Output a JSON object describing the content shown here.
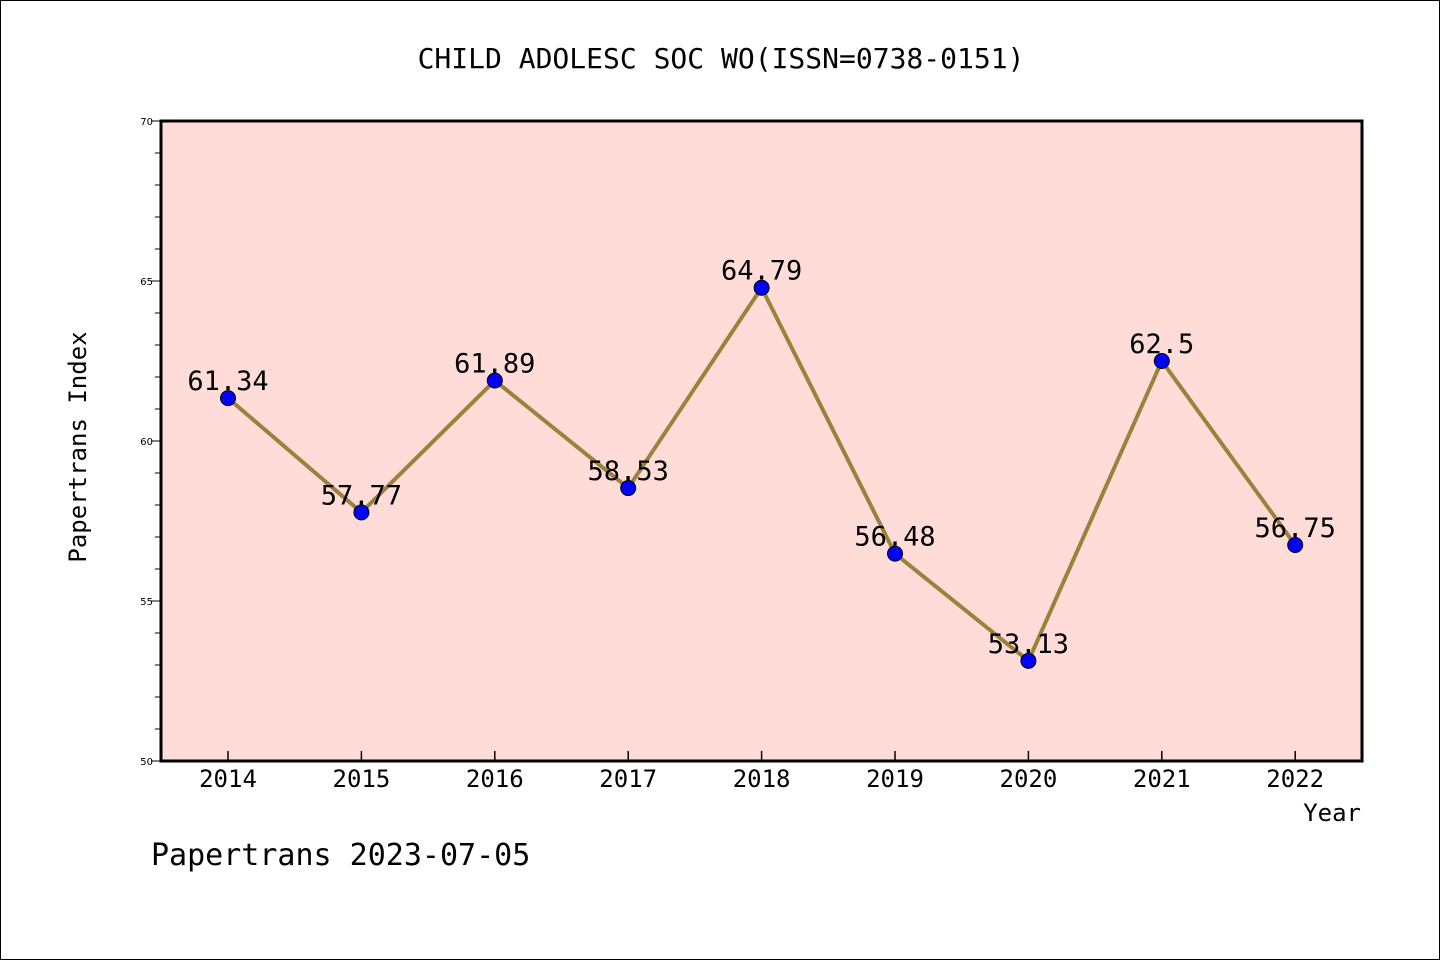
{
  "chart_data": {
    "type": "line",
    "title": "CHILD ADOLESC SOC WO(ISSN=0738-0151)",
    "xlabel": "Year",
    "ylabel": "Papertrans Index",
    "footer": "Papertrans 2023-07-05",
    "x": [
      "2014",
      "2015",
      "2016",
      "2017",
      "2018",
      "2019",
      "2020",
      "2021",
      "2022"
    ],
    "values": [
      61.34,
      57.77,
      61.89,
      58.53,
      64.79,
      56.48,
      53.13,
      62.5,
      56.75
    ],
    "value_labels": [
      "61.34",
      "57.77",
      "61.89",
      "58.53",
      "64.79",
      "56.48",
      "53.13",
      "62.5",
      "56.75"
    ],
    "ylim": [
      50,
      70
    ],
    "yticks": [
      "50",
      "55",
      "60",
      "65",
      "70"
    ],
    "grid": false,
    "legend": "none",
    "colors": {
      "plot_background": "#ffdcd8",
      "line": "#9b823c",
      "marker": "#0000ff"
    }
  }
}
